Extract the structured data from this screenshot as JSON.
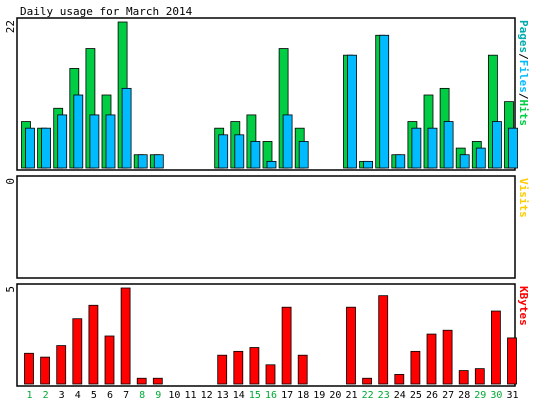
{
  "title": "Daily usage for March 2014",
  "colors": {
    "background": "#ffffff",
    "border": "#000000",
    "hits": "#00cc44",
    "files": "#00bbff",
    "pages": "#00aaaa",
    "visits": "#ffcc00",
    "kbytes": "#ff0000",
    "weekend_label": "#00aa33",
    "weekday_label": "#000000",
    "bar_outline": "#000000"
  },
  "chart_data": [
    {
      "type": "bar",
      "panel": "pages-files-hits",
      "title": "Daily usage for March 2014",
      "right_label_parts": [
        {
          "text": "Pages",
          "color_key": "pages"
        },
        {
          "text": "/",
          "color_key": "border"
        },
        {
          "text": "Files",
          "color_key": "files"
        },
        {
          "text": "/",
          "color_key": "border"
        },
        {
          "text": "Hits",
          "color_key": "hits"
        }
      ],
      "y_tick_label": "22",
      "ylim": [
        0,
        22
      ],
      "x": [
        "1",
        "2",
        "3",
        "4",
        "5",
        "6",
        "7",
        "8",
        "9",
        "10",
        "11",
        "12",
        "13",
        "14",
        "15",
        "16",
        "17",
        "18",
        "19",
        "20",
        "21",
        "22",
        "23",
        "24",
        "25",
        "26",
        "27",
        "28",
        "29",
        "30",
        "31"
      ],
      "series": [
        {
          "name": "Hits",
          "color_key": "hits",
          "values": [
            7,
            6,
            9,
            15,
            18,
            11,
            22,
            2,
            2,
            0,
            0,
            0,
            6,
            7,
            8,
            4,
            18,
            6,
            0,
            0,
            17,
            1,
            20,
            2,
            7,
            11,
            12,
            3,
            4,
            17,
            10
          ]
        },
        {
          "name": "Files",
          "color_key": "files",
          "values": [
            6,
            6,
            8,
            11,
            8,
            8,
            12,
            2,
            2,
            0,
            0,
            0,
            5,
            5,
            4,
            1,
            8,
            4,
            0,
            0,
            17,
            1,
            20,
            2,
            6,
            6,
            7,
            2,
            3,
            7,
            6
          ]
        },
        {
          "name": "Pages",
          "color_key": "pages",
          "values": [
            0,
            0,
            0,
            0,
            0,
            0,
            0,
            0,
            0,
            0,
            0,
            0,
            0,
            0,
            0,
            0,
            0,
            0,
            0,
            0,
            0,
            0,
            0,
            0,
            0,
            0,
            0,
            0,
            0,
            0,
            0
          ]
        }
      ]
    },
    {
      "type": "bar",
      "panel": "visits",
      "right_label_parts": [
        {
          "text": "Visits",
          "color_key": "visits"
        }
      ],
      "y_tick_label": "0",
      "ylim": [
        0,
        1
      ],
      "x": [
        "1",
        "2",
        "3",
        "4",
        "5",
        "6",
        "7",
        "8",
        "9",
        "10",
        "11",
        "12",
        "13",
        "14",
        "15",
        "16",
        "17",
        "18",
        "19",
        "20",
        "21",
        "22",
        "23",
        "24",
        "25",
        "26",
        "27",
        "28",
        "29",
        "30",
        "31"
      ],
      "series": [
        {
          "name": "Visits",
          "color_key": "visits",
          "values": [
            0,
            0,
            0,
            0,
            0,
            0,
            0,
            0,
            0,
            0,
            0,
            0,
            0,
            0,
            0,
            0,
            0,
            0,
            0,
            0,
            0,
            0,
            0,
            0,
            0,
            0,
            0,
            0,
            0,
            0,
            0
          ]
        }
      ]
    },
    {
      "type": "bar",
      "panel": "kbytes",
      "right_label_parts": [
        {
          "text": "KBytes",
          "color_key": "kbytes"
        }
      ],
      "y_tick_label": "5",
      "ylim": [
        0,
        5
      ],
      "x": [
        "1",
        "2",
        "3",
        "4",
        "5",
        "6",
        "7",
        "8",
        "9",
        "10",
        "11",
        "12",
        "13",
        "14",
        "15",
        "16",
        "17",
        "18",
        "19",
        "20",
        "21",
        "22",
        "23",
        "24",
        "25",
        "26",
        "27",
        "28",
        "29",
        "30",
        "31"
      ],
      "weekend_days": [
        "1",
        "2",
        "8",
        "9",
        "15",
        "16",
        "22",
        "23",
        "29",
        "30"
      ],
      "series": [
        {
          "name": "KBytes",
          "color_key": "kbytes",
          "values": [
            1.6,
            1.4,
            2.0,
            3.4,
            4.1,
            2.5,
            5.0,
            0.3,
            0.3,
            0,
            0,
            0,
            1.5,
            1.7,
            1.9,
            1.0,
            4.0,
            1.5,
            0,
            0,
            4.0,
            0.3,
            4.6,
            0.5,
            1.7,
            2.6,
            2.8,
            0.7,
            0.8,
            3.8,
            2.4
          ]
        }
      ]
    }
  ]
}
